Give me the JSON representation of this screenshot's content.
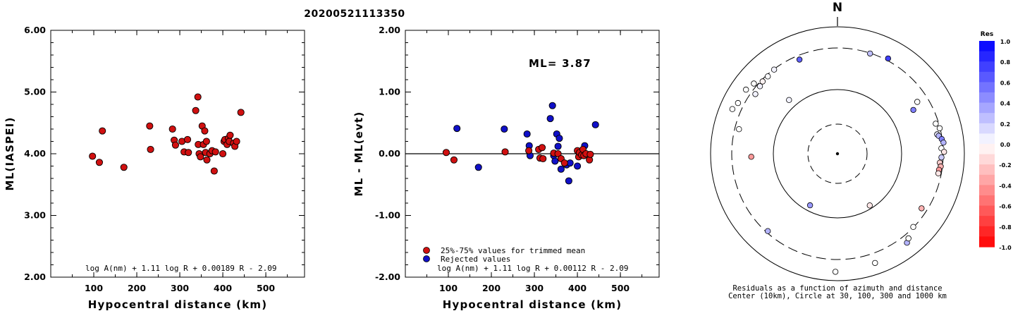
{
  "title": "20200521113350",
  "chart_data": [
    {
      "type": "scatter",
      "name": "ml-vs-distance",
      "ylabel": "ML(IASPEI)",
      "xlabel": "Hypocentral distance (km)",
      "xlim": [
        0,
        590
      ],
      "ylim": [
        2.0,
        6.0
      ],
      "x_ticks": [
        "100",
        "200",
        "300",
        "400",
        "500"
      ],
      "y_ticks": [
        "2.00",
        "3.00",
        "4.00",
        "5.00",
        "6.00"
      ],
      "formula": "log A(nm) + 1.11 log R + 0.00189 R - 2.09",
      "color": "#d01010",
      "points": [
        [
          97,
          3.96
        ],
        [
          113,
          3.86
        ],
        [
          120,
          4.37
        ],
        [
          170,
          3.78
        ],
        [
          230,
          4.45
        ],
        [
          232,
          4.07
        ],
        [
          283,
          4.4
        ],
        [
          287,
          4.22
        ],
        [
          290,
          4.14
        ],
        [
          305,
          4.2
        ],
        [
          310,
          4.03
        ],
        [
          318,
          4.23
        ],
        [
          320,
          4.02
        ],
        [
          337,
          4.7
        ],
        [
          342,
          4.92
        ],
        [
          343,
          4.15
        ],
        [
          345,
          4.0
        ],
        [
          348,
          3.95
        ],
        [
          352,
          4.45
        ],
        [
          355,
          4.15
        ],
        [
          358,
          4.37
        ],
        [
          360,
          4.02
        ],
        [
          362,
          4.2
        ],
        [
          363,
          3.9
        ],
        [
          370,
          4.0
        ],
        [
          375,
          4.05
        ],
        [
          380,
          3.72
        ],
        [
          383,
          4.03
        ],
        [
          400,
          4.0
        ],
        [
          403,
          4.2
        ],
        [
          405,
          4.23
        ],
        [
          410,
          4.15
        ],
        [
          413,
          4.25
        ],
        [
          415,
          4.2
        ],
        [
          417,
          4.3
        ],
        [
          425,
          4.17
        ],
        [
          428,
          4.12
        ],
        [
          432,
          4.2
        ],
        [
          442,
          4.67
        ]
      ]
    },
    {
      "type": "scatter",
      "name": "residual-vs-distance",
      "ylabel": "ML - ML(evt)",
      "xlabel": "Hypocentral distance (km)",
      "xlim": [
        0,
        590
      ],
      "ylim": [
        -2.0,
        2.0
      ],
      "x_ticks": [
        "100",
        "200",
        "300",
        "400",
        "500"
      ],
      "y_ticks": [
        "-2.00",
        "-1.00",
        "0.00",
        "1.00",
        "2.00"
      ],
      "annotation": "ML= 3.87",
      "formula": "log A(nm) + 1.11 log R + 0.00112 R - 2.09",
      "legend": {
        "used": "25%-75% values for trimmed mean",
        "rejected": "Rejected values"
      },
      "used_color": "#d01010",
      "rejected_color": "#1010c8",
      "used_points": [
        [
          95,
          0.02
        ],
        [
          113,
          -0.1
        ],
        [
          232,
          0.03
        ],
        [
          287,
          0.05
        ],
        [
          310,
          0.07
        ],
        [
          313,
          -0.07
        ],
        [
          318,
          0.1
        ],
        [
          320,
          -0.08
        ],
        [
          345,
          0.01
        ],
        [
          355,
          0.0
        ],
        [
          362,
          -0.08
        ],
        [
          370,
          -0.15
        ],
        [
          400,
          0.05
        ],
        [
          403,
          -0.05
        ],
        [
          405,
          0.02
        ],
        [
          410,
          -0.02
        ],
        [
          413,
          0.07
        ],
        [
          415,
          -0.03
        ],
        [
          420,
          0.0
        ],
        [
          428,
          -0.1
        ],
        [
          430,
          -0.01
        ]
      ],
      "rejected_points": [
        [
          120,
          0.41
        ],
        [
          170,
          -0.22
        ],
        [
          230,
          0.4
        ],
        [
          283,
          0.32
        ],
        [
          288,
          0.13
        ],
        [
          290,
          -0.03
        ],
        [
          337,
          0.57
        ],
        [
          342,
          0.78
        ],
        [
          345,
          -0.03
        ],
        [
          348,
          -0.12
        ],
        [
          352,
          0.32
        ],
        [
          355,
          0.12
        ],
        [
          358,
          0.25
        ],
        [
          362,
          -0.25
        ],
        [
          375,
          -0.18
        ],
        [
          380,
          -0.44
        ],
        [
          383,
          -0.15
        ],
        [
          400,
          -0.2
        ],
        [
          417,
          0.13
        ],
        [
          442,
          0.47
        ]
      ]
    },
    {
      "type": "polar-scatter",
      "name": "residual-azimuth-map",
      "north_label": "N",
      "caption_line1": "Residuals as a function of azimuth and distance",
      "caption_line2": "Center (10km), Circle at 30, 100, 300 and 1000 km",
      "rings_km": [
        30,
        100,
        300,
        1000
      ],
      "points": [
        {
          "az": 338,
          "r": 0.8,
          "res": 0.62
        },
        {
          "az": 18,
          "r": 0.83,
          "res": 0.25
        },
        {
          "az": 28,
          "r": 0.85,
          "res": 0.75
        },
        {
          "az": 323,
          "r": 0.83,
          "res": 0.05
        },
        {
          "az": 318,
          "r": 0.82,
          "res": 0.02
        },
        {
          "az": 314,
          "r": 0.82,
          "res": -0.05
        },
        {
          "az": 311,
          "r": 0.81,
          "res": 0.05
        },
        {
          "az": 306,
          "r": 0.8,
          "res": 0.05
        },
        {
          "az": 310,
          "r": 0.86,
          "res": 0.0
        },
        {
          "az": 305,
          "r": 0.88,
          "res": 0.0
        },
        {
          "az": 297,
          "r": 0.88,
          "res": 0.0
        },
        {
          "az": 293,
          "r": 0.9,
          "res": 0.0
        },
        {
          "az": 284,
          "r": 0.8,
          "res": 0.0
        },
        {
          "az": 268,
          "r": 0.68,
          "res": -0.4
        },
        {
          "az": 318,
          "r": 0.57,
          "res": 0.05
        },
        {
          "az": 222,
          "r": 0.82,
          "res": 0.3
        },
        {
          "az": 208,
          "r": 0.46,
          "res": 0.4
        },
        {
          "az": 181,
          "r": 0.93,
          "res": 0.0
        },
        {
          "az": 161,
          "r": 0.91,
          "res": 0.0
        },
        {
          "az": 148,
          "r": 0.48,
          "res": -0.1
        },
        {
          "az": 142,
          "r": 0.89,
          "res": 0.3
        },
        {
          "az": 140,
          "r": 0.87,
          "res": 0.0
        },
        {
          "az": 134,
          "r": 0.83,
          "res": 0.0
        },
        {
          "az": 123,
          "r": 0.79,
          "res": -0.3
        },
        {
          "az": 57,
          "r": 0.75,
          "res": 0.0
        },
        {
          "az": 60,
          "r": 0.69,
          "res": 0.5
        },
        {
          "az": 73,
          "r": 0.81,
          "res": 0.0
        },
        {
          "az": 76,
          "r": 0.83,
          "res": 0.0
        },
        {
          "az": 79,
          "r": 0.8,
          "res": 0.1
        },
        {
          "az": 80,
          "r": 0.81,
          "res": 0.3
        },
        {
          "az": 82,
          "r": 0.83,
          "res": 0.5
        },
        {
          "az": 84,
          "r": 0.84,
          "res": 0.3
        },
        {
          "az": 87,
          "r": 0.82,
          "res": 0.0
        },
        {
          "az": 89,
          "r": 0.84,
          "res": -0.1
        },
        {
          "az": 92,
          "r": 0.82,
          "res": 0.2
        },
        {
          "az": 95,
          "r": 0.81,
          "res": -0.2
        },
        {
          "az": 97,
          "r": 0.82,
          "res": -0.3
        },
        {
          "az": 99,
          "r": 0.81,
          "res": -0.4
        },
        {
          "az": 101,
          "r": 0.81,
          "res": -0.1
        }
      ]
    }
  ],
  "colorbar": {
    "label": "Res",
    "ticks": [
      "1.0",
      "0.8",
      "0.6",
      "0.4",
      "0.2",
      "0.0",
      "-0.2",
      "-0.4",
      "-0.6",
      "-0.8",
      "-1.0"
    ],
    "max_color": "#0000ff",
    "min_color": "#ff0000"
  }
}
